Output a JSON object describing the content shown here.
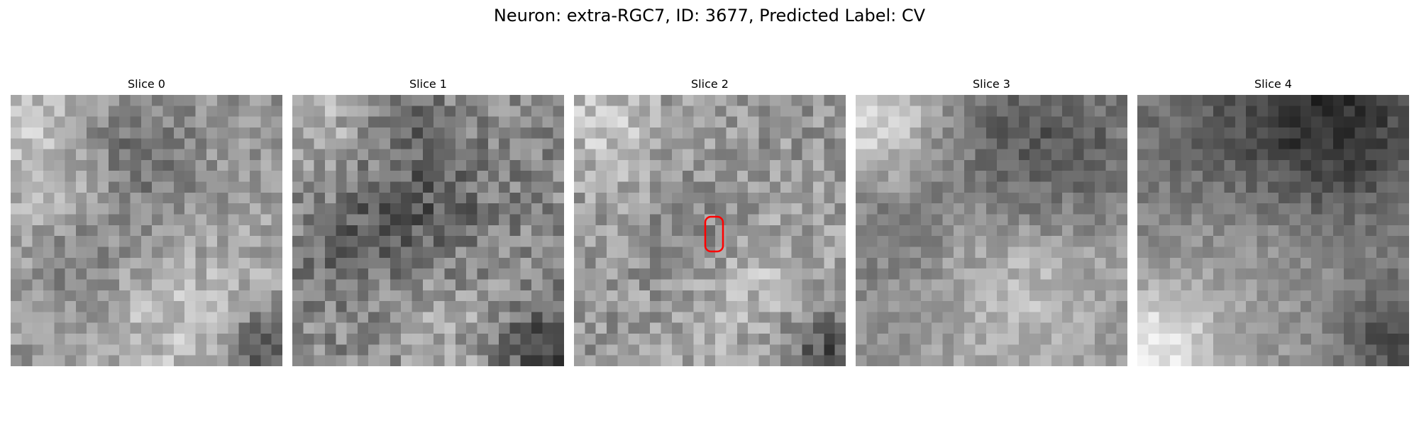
{
  "figure": {
    "title": "Neuron: extra-RGC7, ID: 3677, Predicted Label: CV"
  },
  "panels": [
    {
      "title": "Slice 0"
    },
    {
      "title": "Slice 1"
    },
    {
      "title": "Slice 2"
    },
    {
      "title": "Slice 3"
    },
    {
      "title": "Slice 4"
    }
  ],
  "image": {
    "colormap": "grayscale",
    "grid_size": 25
  },
  "roi_marker": {
    "slice_index": 2,
    "color": "#ff0000",
    "shape": "rounded-rectangle"
  }
}
